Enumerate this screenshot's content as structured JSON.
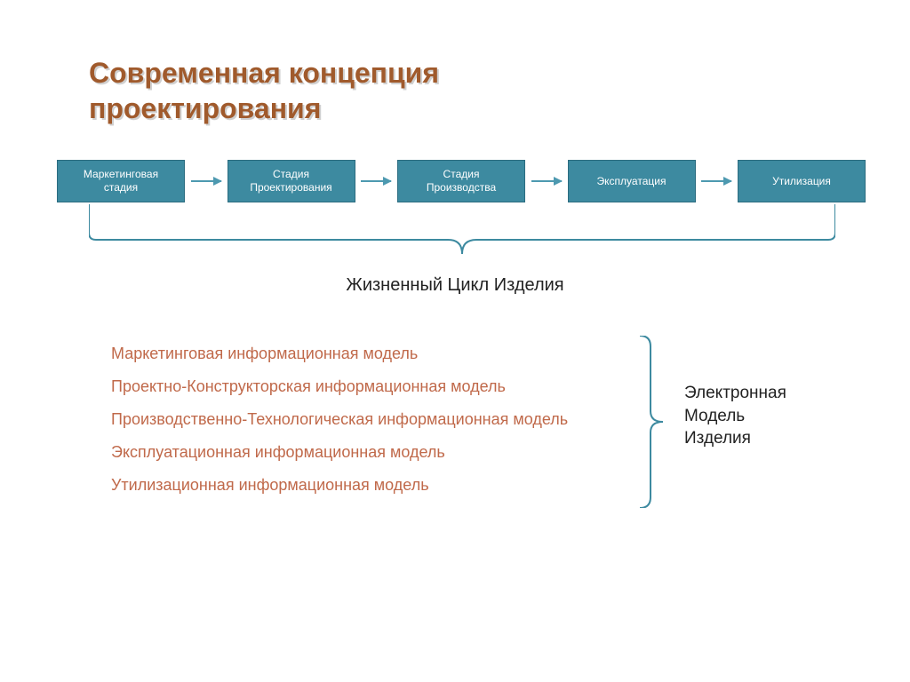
{
  "title": {
    "line1": "Современная концепция",
    "line2": "проектирования",
    "color": "#a05a2c"
  },
  "flow": {
    "box_fill": "#3d8aa0",
    "box_border": "#2b6c80",
    "arrow_color": "#4d99b0",
    "stages": [
      "Маркетинговая\nстадия",
      "Стадия\nПроектирования",
      "Стадия\nПроизводства",
      "Эксплуатация",
      "Утилизация"
    ]
  },
  "lifecycle": {
    "label": "Жизненный Цикл Изделия",
    "label_color": "#222222",
    "brace_color": "#3d8aa0"
  },
  "models": {
    "color": "#c0694a",
    "items": [
      "Маркетинговая информационная модель",
      "Проектно-Конструкторская информационная модель",
      "Производственно-Технологическая информационная модель",
      "Эксплуатационная информационная модель",
      "Утилизационная информационная модель"
    ]
  },
  "right": {
    "brace_color": "#3d8aa0",
    "label": "Электронная\nМодель\nИзделия",
    "label_color": "#222222"
  }
}
